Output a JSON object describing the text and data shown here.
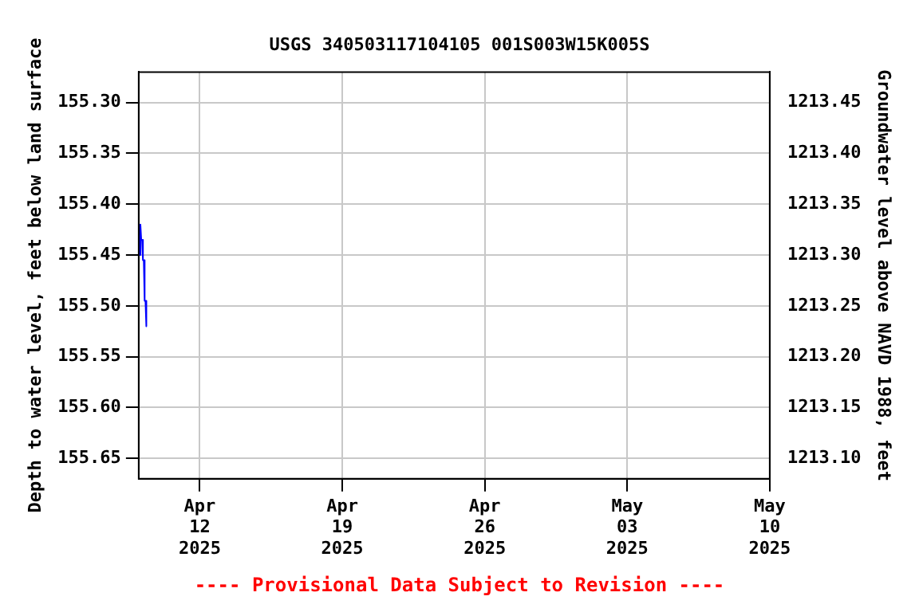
{
  "chart_data": {
    "type": "line",
    "title": "USGS 340503117104105 001S003W15K005S",
    "xlabel": null,
    "ylabel": "Depth to water level, feet below land surface",
    "y2label": "Groundwater level above NAVD 1988, feet",
    "series": [
      {
        "color": "#0000ff",
        "x": [
          "2025-04-09T00:00",
          "2025-04-09T01:00",
          "2025-04-09T02:00",
          "2025-04-09T03:00",
          "2025-04-09T04:00",
          "2025-04-09T05:00",
          "2025-04-09T06:00",
          "2025-04-09T07:00",
          "2025-04-09T08:00",
          "2025-04-09T09:00"
        ],
        "values": [
          155.43,
          155.45,
          155.42,
          155.435,
          155.435,
          155.455,
          155.455,
          155.495,
          155.495,
          155.52
        ]
      }
    ],
    "xlim": [
      "2025-04-09",
      "2025-05-10"
    ],
    "xticks": [
      {
        "value": "2025-04-12",
        "label": "Apr\n12\n2025"
      },
      {
        "value": "2025-04-19",
        "label": "Apr\n19\n2025"
      },
      {
        "value": "2025-04-26",
        "label": "Apr\n26\n2025"
      },
      {
        "value": "2025-05-03",
        "label": "May\n03\n2025"
      },
      {
        "value": "2025-05-10",
        "label": "May\n10\n2025"
      }
    ],
    "ylim": [
      155.67,
      155.27
    ],
    "yticks": [
      {
        "value": 155.3,
        "label": "155.30"
      },
      {
        "value": 155.35,
        "label": "155.35"
      },
      {
        "value": 155.4,
        "label": "155.40"
      },
      {
        "value": 155.45,
        "label": "155.45"
      },
      {
        "value": 155.5,
        "label": "155.50"
      },
      {
        "value": 155.55,
        "label": "155.55"
      },
      {
        "value": 155.6,
        "label": "155.60"
      },
      {
        "value": 155.65,
        "label": "155.65"
      }
    ],
    "y2lim": [
      1213.08,
      1213.48
    ],
    "y2ticks": [
      {
        "value": 1213.1,
        "label": "1213.10"
      },
      {
        "value": 1213.15,
        "label": "1213.15"
      },
      {
        "value": 1213.2,
        "label": "1213.20"
      },
      {
        "value": 1213.25,
        "label": "1213.25"
      },
      {
        "value": 1213.3,
        "label": "1213.30"
      },
      {
        "value": 1213.35,
        "label": "1213.35"
      },
      {
        "value": 1213.4,
        "label": "1213.40"
      },
      {
        "value": 1213.45,
        "label": "1213.45"
      }
    ],
    "grid": true,
    "legend": false,
    "marker": "none",
    "line_style": "solid",
    "annotations": [
      "---- Provisional Data Subject to Revision ----"
    ]
  }
}
